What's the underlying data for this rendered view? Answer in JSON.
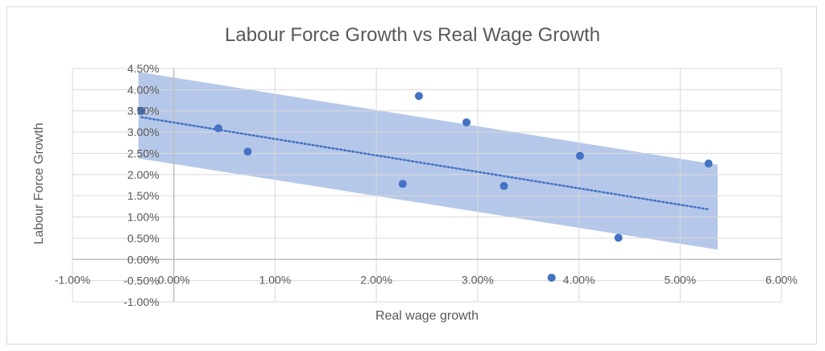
{
  "chart_data": {
    "type": "scatter",
    "title": "Labour Force Growth vs Real Wage Growth",
    "xlabel": "Real wage growth",
    "ylabel": "Labour Force Growth",
    "xlim": [
      -0.01,
      0.06
    ],
    "ylim": [
      -0.01,
      0.045
    ],
    "x_ticks": [
      -0.01,
      0.0,
      0.01,
      0.02,
      0.03,
      0.04,
      0.05,
      0.06
    ],
    "x_tick_labels": [
      "-1.00%",
      "0.00%",
      "1.00%",
      "2.00%",
      "3.00%",
      "4.00%",
      "5.00%",
      "6.00%"
    ],
    "y_ticks": [
      -0.01,
      -0.005,
      0.0,
      0.005,
      0.01,
      0.015,
      0.02,
      0.025,
      0.03,
      0.035,
      0.04,
      0.045
    ],
    "y_tick_labels": [
      "-1.00%",
      "-0.50%",
      "0.00%",
      "0.50%",
      "1.00%",
      "1.50%",
      "2.00%",
      "2.50%",
      "3.00%",
      "3.50%",
      "4.00%",
      "4.50%"
    ],
    "grid": true,
    "series": [
      {
        "x": [
          -0.0032,
          0.0044,
          0.0073,
          0.0226,
          0.0242,
          0.0289,
          0.0326,
          0.0373,
          0.0401,
          0.0439,
          0.0528
        ],
        "y": [
          0.035,
          0.0309,
          0.0254,
          0.0178,
          0.0385,
          0.0323,
          0.0173,
          -0.0043,
          0.0244,
          0.0051,
          0.0226
        ]
      }
    ],
    "trendline": {
      "type": "linear",
      "style": "dotted",
      "x": [
        -0.0032,
        0.0528
      ],
      "y": [
        0.0335,
        0.0118
      ]
    },
    "confidence_band": {
      "x": [
        -0.0035,
        0.0537
      ],
      "upper": [
        0.0442,
        0.0223
      ],
      "lower": [
        0.0238,
        0.0023
      ]
    },
    "colors": {
      "marker": "#4472c4",
      "trendline": "#4472c4",
      "band": "#a9bee5",
      "grid": "#d9d9d9",
      "axis_zero": "#bfbfbf",
      "text": "#595959"
    }
  }
}
